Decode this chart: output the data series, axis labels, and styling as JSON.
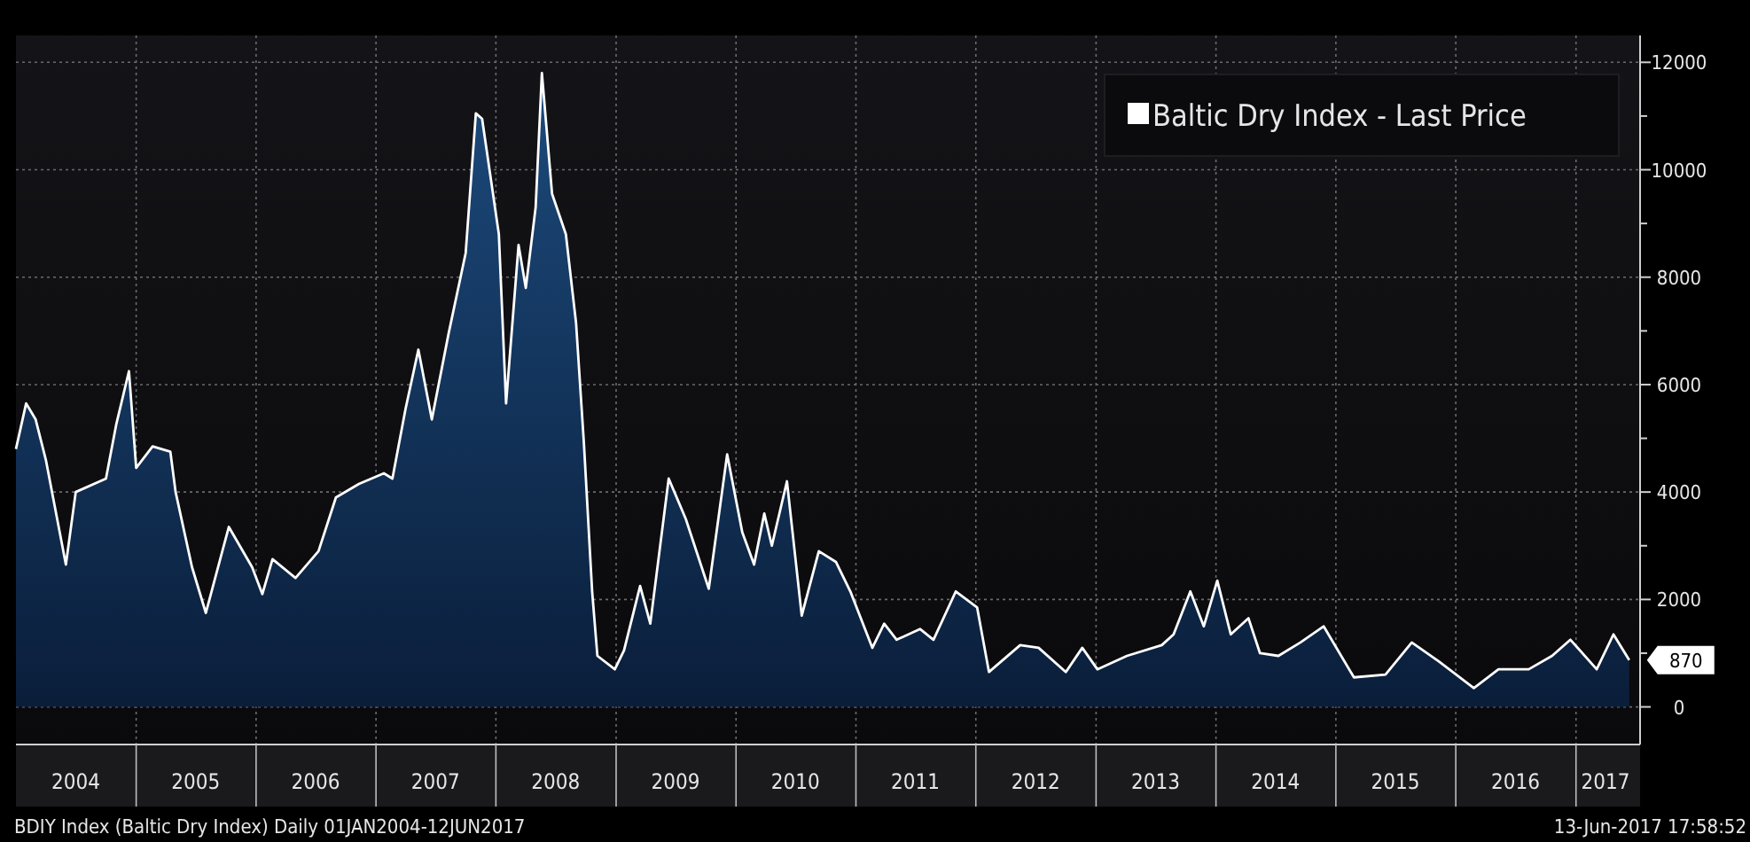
{
  "chart_data": {
    "type": "area",
    "x": [
      "2004-01-01",
      "2004-02-01",
      "2004-03-01",
      "2004-04-01",
      "2004-06-01",
      "2004-07-01",
      "2004-10-01",
      "2004-11-01",
      "2004-12-10",
      "2005-01-01",
      "2005-02-20",
      "2005-04-15",
      "2005-05-01",
      "2005-06-20",
      "2005-08-01",
      "2005-10-10",
      "2005-12-20",
      "2006-01-20",
      "2006-02-20",
      "2006-05-01",
      "2006-07-10",
      "2006-09-01",
      "2006-11-10",
      "2007-01-25",
      "2007-02-20",
      "2007-04-01",
      "2007-05-10",
      "2007-06-20",
      "2007-08-10",
      "2007-10-01",
      "2007-11-01",
      "2007-11-20",
      "2008-01-10",
      "2008-02-01",
      "2008-03-10",
      "2008-04-01",
      "2008-05-01",
      "2008-05-20",
      "2008-06-20",
      "2008-08-01",
      "2008-09-01",
      "2008-09-25",
      "2008-10-20",
      "2008-11-05",
      "2008-12-28",
      "2009-01-25",
      "2009-03-15",
      "2009-04-15",
      "2009-06-10",
      "2009-08-01",
      "2009-10-10",
      "2009-12-05",
      "2010-01-20",
      "2010-02-25",
      "2010-03-28",
      "2010-04-20",
      "2010-06-05",
      "2010-07-20",
      "2010-09-10",
      "2010-11-01",
      "2010-12-15",
      "2011-02-20",
      "2011-03-28",
      "2011-05-05",
      "2011-07-15",
      "2011-08-25",
      "2011-11-01",
      "2012-01-05",
      "2012-02-10",
      "2012-05-15",
      "2012-07-10",
      "2012-10-01",
      "2012-11-20",
      "2013-01-05",
      "2013-04-05",
      "2013-07-20",
      "2013-08-25",
      "2013-10-15",
      "2013-11-25",
      "2014-01-05",
      "2014-02-15",
      "2014-04-10",
      "2014-05-15",
      "2014-07-10",
      "2014-09-15",
      "2014-11-25",
      "2015-02-25",
      "2015-06-01",
      "2015-08-20",
      "2015-11-10",
      "2016-02-25",
      "2016-05-10",
      "2016-08-10",
      "2016-10-20",
      "2016-12-15",
      "2017-03-05",
      "2017-04-25",
      "2017-06-12"
    ],
    "series": [
      {
        "name": "Baltic Dry Index - Last Price",
        "color": "#ffffff",
        "values": [
          4800,
          5650,
          5350,
          4600,
          2650,
          4000,
          4250,
          5250,
          6250,
          4450,
          4850,
          4750,
          4000,
          2600,
          1750,
          3350,
          2600,
          2100,
          2750,
          2400,
          2900,
          3900,
          4150,
          4350,
          4250,
          5550,
          6650,
          5350,
          6950,
          8450,
          11050,
          10950,
          8800,
          5650,
          8600,
          7800,
          9300,
          11800,
          9550,
          8800,
          7150,
          4900,
          2150,
          950,
          700,
          1050,
          2250,
          1550,
          4250,
          3500,
          2200,
          4700,
          3250,
          2650,
          3600,
          3000,
          4200,
          1700,
          2900,
          2700,
          2150,
          1100,
          1550,
          1250,
          1450,
          1250,
          2150,
          1850,
          650,
          1150,
          1100,
          650,
          1100,
          700,
          950,
          1150,
          1350,
          2150,
          1500,
          2350,
          1350,
          1650,
          1000,
          950,
          1200,
          1500,
          550,
          600,
          1200,
          850,
          350,
          700,
          700,
          950,
          1250,
          700,
          1350,
          870
        ]
      }
    ],
    "xlim": [
      "2004-01-01",
      "2017-07-15"
    ],
    "xticks": [
      {
        "value": "2004-07-01",
        "label": "2004"
      },
      {
        "value": "2005-01-01",
        "label": null
      },
      {
        "value": "2005-07-01",
        "label": "2005"
      },
      {
        "value": "2006-01-01",
        "label": null
      },
      {
        "value": "2006-07-01",
        "label": "2006"
      },
      {
        "value": "2007-01-01",
        "label": null
      },
      {
        "value": "2007-07-01",
        "label": "2007"
      },
      {
        "value": "2008-01-01",
        "label": null
      },
      {
        "value": "2008-07-01",
        "label": "2008"
      },
      {
        "value": "2009-01-01",
        "label": null
      },
      {
        "value": "2009-07-01",
        "label": "2009"
      },
      {
        "value": "2010-01-01",
        "label": null
      },
      {
        "value": "2010-07-01",
        "label": "2010"
      },
      {
        "value": "2011-01-01",
        "label": null
      },
      {
        "value": "2011-07-01",
        "label": "2011"
      },
      {
        "value": "2012-01-01",
        "label": null
      },
      {
        "value": "2012-07-01",
        "label": "2012"
      },
      {
        "value": "2013-01-01",
        "label": null
      },
      {
        "value": "2013-07-01",
        "label": "2013"
      },
      {
        "value": "2014-01-01",
        "label": null
      },
      {
        "value": "2014-07-01",
        "label": "2014"
      },
      {
        "value": "2015-01-01",
        "label": null
      },
      {
        "value": "2015-07-01",
        "label": "2015"
      },
      {
        "value": "2016-01-01",
        "label": null
      },
      {
        "value": "2016-07-01",
        "label": "2016"
      },
      {
        "value": "2017-01-01",
        "label": null
      },
      {
        "value": "2017-04-01",
        "label": "2017"
      }
    ],
    "ylim": [
      -700,
      12500
    ],
    "yticks": [
      0,
      {
        "value": 1000,
        "label": null
      },
      2000,
      {
        "value": 3000,
        "label": null
      },
      4000,
      {
        "value": 5000,
        "label": null
      },
      6000,
      {
        "value": 7000,
        "label": null
      },
      8000,
      {
        "value": 9000,
        "label": null
      },
      10000,
      {
        "value": 11000,
        "label": null
      },
      12000
    ],
    "grid": true,
    "legend": "top right",
    "annotations": [
      {
        "text": "870",
        "x": "2017-06-12",
        "y": 870
      },
      "BDIY Index (Baltic Dry Index)  Daily 01JAN2004-12JUN2017",
      "13-Jun-2017 17:58:52"
    ]
  }
}
